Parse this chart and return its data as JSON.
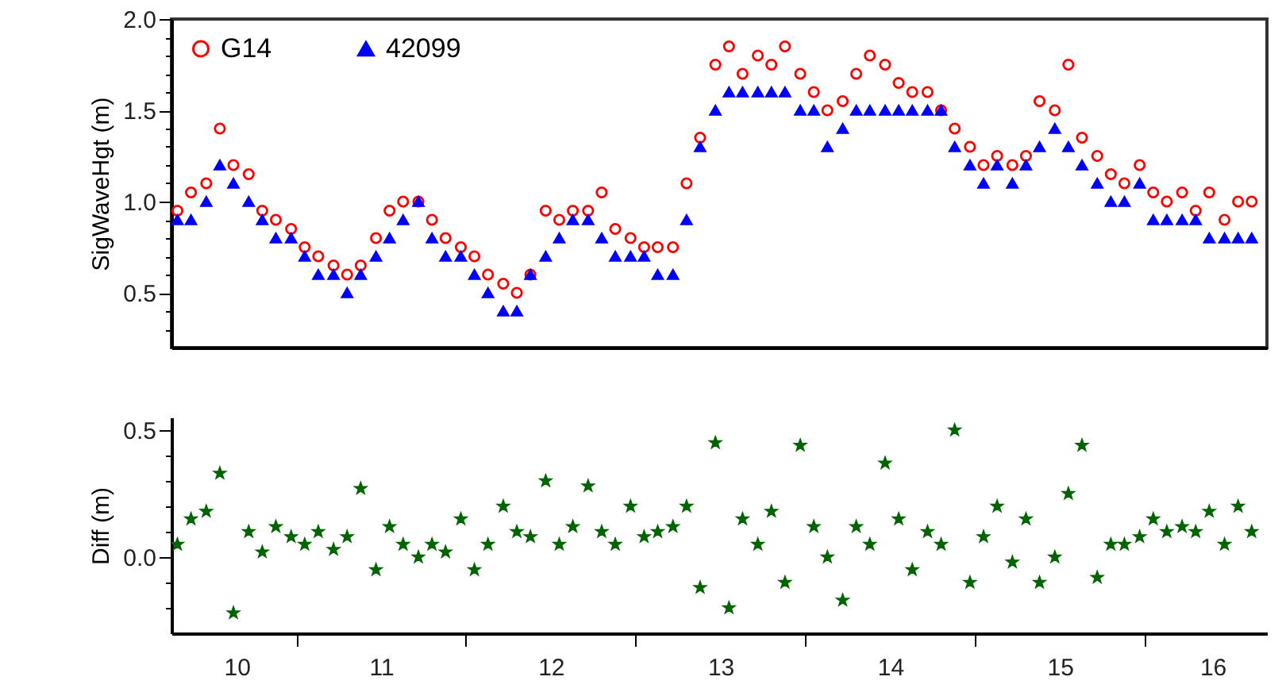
{
  "chart_data": [
    {
      "type": "scatter",
      "ylabel": "SigWaveHgt (m)",
      "legend": "top left",
      "tick_labels": "y",
      "xlim": [
        9.765,
        16.22
      ],
      "ylim": [
        0.2,
        2.0
      ],
      "yticks": [
        {
          "value": 0.3,
          "label": null
        },
        {
          "value": 0.4,
          "label": null
        },
        {
          "value": 0.5,
          "label": "0.5"
        },
        {
          "value": 0.6,
          "label": null
        },
        {
          "value": 0.7,
          "label": null
        },
        {
          "value": 0.8,
          "label": null
        },
        {
          "value": 0.9,
          "label": null
        },
        {
          "value": 1.0,
          "label": "1.0"
        },
        {
          "value": 1.1,
          "label": null
        },
        {
          "value": 1.2,
          "label": null
        },
        {
          "value": 1.3,
          "label": null
        },
        {
          "value": 1.4,
          "label": null
        },
        {
          "value": 1.5,
          "label": "1.5"
        },
        {
          "value": 1.6,
          "label": null
        },
        {
          "value": 1.7,
          "label": null
        },
        {
          "value": 1.8,
          "label": null
        },
        {
          "value": 1.9,
          "label": null
        },
        {
          "value": 2.0,
          "label": "2.0"
        }
      ],
      "x": [
        9.8,
        9.88,
        9.97,
        10.05,
        10.13,
        10.22,
        10.3,
        10.38,
        10.47,
        10.55,
        10.63,
        10.72,
        10.8,
        10.88,
        10.97,
        11.05,
        11.13,
        11.22,
        11.3,
        11.38,
        11.47,
        11.55,
        11.63,
        11.72,
        11.8,
        11.88,
        11.97,
        12.05,
        12.13,
        12.22,
        12.3,
        12.38,
        12.47,
        12.55,
        12.63,
        12.72,
        12.8,
        12.88,
        12.97,
        13.05,
        13.13,
        13.22,
        13.3,
        13.38,
        13.47,
        13.55,
        13.63,
        13.72,
        13.8,
        13.88,
        13.97,
        14.05,
        14.13,
        14.22,
        14.3,
        14.38,
        14.47,
        14.55,
        14.63,
        14.72,
        14.8,
        14.88,
        14.97,
        15.05,
        15.13,
        15.22,
        15.3,
        15.38,
        15.47,
        15.55,
        15.63,
        15.72,
        15.8,
        15.88,
        15.97,
        16.05,
        16.13
      ],
      "series": [
        {
          "name": "G14",
          "color": "#ff0000",
          "marker": "circle",
          "values": [
            0.95,
            1.05,
            1.1,
            1.4,
            1.2,
            1.15,
            0.95,
            0.9,
            0.85,
            0.75,
            0.7,
            0.65,
            0.6,
            0.65,
            0.8,
            0.95,
            1.0,
            1.0,
            0.9,
            0.8,
            0.75,
            0.7,
            0.6,
            0.55,
            0.5,
            0.6,
            0.95,
            0.9,
            0.95,
            0.95,
            1.05,
            0.85,
            0.8,
            0.75,
            0.75,
            0.75,
            1.1,
            1.35,
            1.75,
            1.85,
            1.7,
            1.8,
            1.75,
            1.85,
            1.7,
            1.6,
            1.5,
            1.55,
            1.7,
            1.8,
            1.75,
            1.65,
            1.6,
            1.6,
            1.5,
            1.4,
            1.3,
            1.2,
            1.25,
            1.2,
            1.25,
            1.55,
            1.5,
            1.75,
            1.35,
            1.25,
            1.15,
            1.1,
            1.2,
            1.05,
            1.0,
            1.05,
            0.95,
            1.05,
            0.9,
            1.0,
            1.0
          ]
        },
        {
          "name": "42099",
          "color": "#0000ff",
          "marker": "triangle",
          "values": [
            0.9,
            0.9,
            1.0,
            1.2,
            1.1,
            1.0,
            0.9,
            0.8,
            0.8,
            0.7,
            0.6,
            0.6,
            0.5,
            0.6,
            0.7,
            0.8,
            0.9,
            1.0,
            0.8,
            0.7,
            0.7,
            0.6,
            0.5,
            0.4,
            0.4,
            0.6,
            0.7,
            0.8,
            0.9,
            0.9,
            0.8,
            0.7,
            0.7,
            0.7,
            0.6,
            0.6,
            0.9,
            1.3,
            1.5,
            1.6,
            1.6,
            1.6,
            1.6,
            1.6,
            1.5,
            1.5,
            1.3,
            1.4,
            1.5,
            1.5,
            1.5,
            1.5,
            1.5,
            1.5,
            1.5,
            1.3,
            1.2,
            1.1,
            1.2,
            1.1,
            1.2,
            1.3,
            1.4,
            1.3,
            1.2,
            1.1,
            1.0,
            1.0,
            1.1,
            0.9,
            0.9,
            0.9,
            0.9,
            0.8,
            0.8,
            0.8,
            0.8
          ]
        }
      ]
    },
    {
      "type": "scatter",
      "ylabel": "Diff (m)",
      "xlim": [
        9.765,
        16.22
      ],
      "ylim": [
        -0.3,
        0.55
      ],
      "xticks": [
        {
          "value": 10.15,
          "label": "10"
        },
        {
          "value": 10.5,
          "label": null
        },
        {
          "value": 11,
          "label": "11"
        },
        {
          "value": 11.5,
          "label": null
        },
        {
          "value": 12,
          "label": "12"
        },
        {
          "value": 12.5,
          "label": null
        },
        {
          "value": 13,
          "label": "13"
        },
        {
          "value": 13.5,
          "label": null
        },
        {
          "value": 14,
          "label": "14"
        },
        {
          "value": 14.5,
          "label": null
        },
        {
          "value": 15,
          "label": "15"
        },
        {
          "value": 15.5,
          "label": null
        },
        {
          "value": 15.9,
          "label": "16"
        }
      ],
      "yticks": [
        {
          "value": -0.2,
          "label": null
        },
        {
          "value": -0.1,
          "label": null
        },
        {
          "value": 0.0,
          "label": "0.0"
        },
        {
          "value": 0.1,
          "label": null
        },
        {
          "value": 0.2,
          "label": null
        },
        {
          "value": 0.3,
          "label": null
        },
        {
          "value": 0.4,
          "label": null
        },
        {
          "value": 0.5,
          "label": "0.5"
        }
      ],
      "x": [
        9.8,
        9.88,
        9.97,
        10.05,
        10.13,
        10.22,
        10.3,
        10.38,
        10.47,
        10.55,
        10.63,
        10.72,
        10.8,
        10.88,
        10.97,
        11.05,
        11.13,
        11.22,
        11.3,
        11.38,
        11.47,
        11.55,
        11.63,
        11.72,
        11.8,
        11.88,
        11.97,
        12.05,
        12.13,
        12.22,
        12.3,
        12.38,
        12.47,
        12.55,
        12.63,
        12.72,
        12.8,
        12.88,
        12.97,
        13.05,
        13.13,
        13.22,
        13.3,
        13.38,
        13.47,
        13.55,
        13.63,
        13.72,
        13.8,
        13.88,
        13.97,
        14.05,
        14.13,
        14.22,
        14.3,
        14.38,
        14.47,
        14.55,
        14.63,
        14.72,
        14.8,
        14.88,
        14.97,
        15.05,
        15.13,
        15.22,
        15.3,
        15.38,
        15.47,
        15.55,
        15.63,
        15.72,
        15.8,
        15.88,
        15.97,
        16.05,
        16.13
      ],
      "series": [
        {
          "color": "#006400",
          "marker": "star",
          "values": [
            0.05,
            0.15,
            0.18,
            0.33,
            -0.22,
            0.1,
            0.02,
            0.12,
            0.08,
            0.05,
            0.1,
            0.03,
            0.08,
            0.27,
            -0.05,
            0.12,
            0.05,
            0.0,
            0.05,
            0.02,
            0.15,
            -0.05,
            0.05,
            0.2,
            0.1,
            0.08,
            0.3,
            0.05,
            0.12,
            0.28,
            0.1,
            0.05,
            0.2,
            0.08,
            0.1,
            0.12,
            0.2,
            -0.12,
            0.45,
            -0.2,
            0.15,
            0.05,
            0.18,
            -0.1,
            0.44,
            0.12,
            0.0,
            -0.17,
            0.12,
            0.05,
            0.37,
            0.15,
            -0.05,
            0.1,
            0.05,
            0.5,
            -0.1,
            0.08,
            0.2,
            -0.02,
            0.15,
            -0.1,
            0.0,
            0.25,
            0.44,
            -0.08,
            0.05,
            0.05,
            0.08,
            0.15,
            0.1,
            0.12,
            0.1,
            0.18,
            0.05,
            0.2,
            0.1
          ]
        }
      ]
    }
  ]
}
